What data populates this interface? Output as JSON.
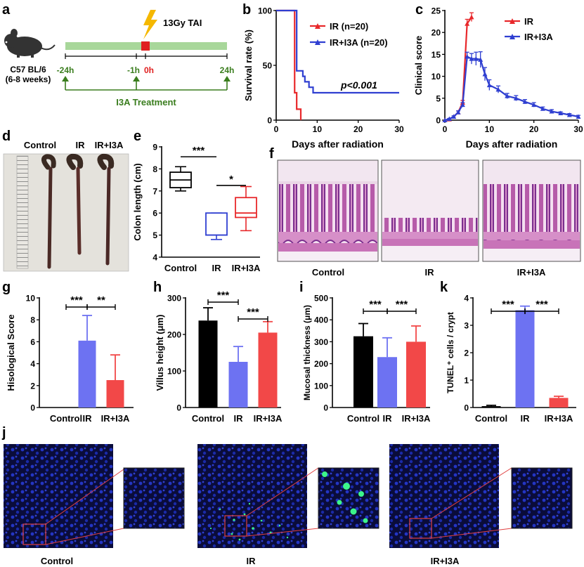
{
  "colors": {
    "red": "#e8282b",
    "blue": "#2f3fd1",
    "green_bar": "#a8d79a",
    "green_text": "#3a7d1e",
    "bar_black": "#000000",
    "bar_blue": "#6d72f2",
    "bar_red": "#f24848",
    "tissue_pink": "#c873b8",
    "tissue_purple": "#7b2f8e",
    "fluor_bg": "#0a0c3a",
    "fluor_cell": "#1a2ab0",
    "fluor_green": "#3cf58a",
    "zoom_line": "#e04040",
    "panel_border": "#555555"
  },
  "panel_letters": {
    "a": "a",
    "b": "b",
    "c": "c",
    "d": "d",
    "e": "e",
    "f": "f",
    "g": "g",
    "h": "h",
    "i": "i",
    "j": "j",
    "k": "k"
  },
  "panel_a": {
    "mouse_line1": "C57 BL/6",
    "mouse_line2": "(6-8 weeks)",
    "dose_label": "13Gy TAI",
    "times": [
      "-24h",
      "-1h",
      "0h",
      "24h"
    ],
    "treatment_label": "I3A Treatment"
  },
  "panel_d": {
    "labels": [
      "Control",
      "IR",
      "IR+I3A"
    ]
  },
  "panel_f": {
    "labels": [
      "Control",
      "IR",
      "IR+I3A"
    ]
  },
  "panel_j": {
    "labels": [
      "Control",
      "IR",
      "IR+I3A"
    ]
  },
  "chart_data": [
    {
      "panel": "b",
      "type": "line",
      "title": "",
      "xlabel": "Days after radiation",
      "ylabel": "Survival rate (%)",
      "xlim": [
        0,
        30
      ],
      "ylim": [
        0,
        100
      ],
      "xticks": [
        0,
        10,
        20,
        30
      ],
      "yticks": [
        0,
        50,
        100
      ],
      "series": [
        {
          "name": "IR (n=20)",
          "color": "red",
          "x": [
            0,
            4.5,
            4.5,
            5,
            5,
            5.5,
            5.5,
            6,
            6
          ],
          "y": [
            100,
            100,
            25,
            25,
            10,
            10,
            10,
            10,
            0
          ]
        },
        {
          "name": "IR+I3A (n=20)",
          "color": "blue",
          "x": [
            0,
            5,
            5,
            5.5,
            5.5,
            6.5,
            6.5,
            7,
            7,
            7.5,
            7.5,
            8,
            8,
            9,
            9,
            30
          ],
          "y": [
            100,
            100,
            45,
            45,
            45,
            45,
            40,
            40,
            35,
            35,
            35,
            35,
            30,
            30,
            25,
            25
          ]
        }
      ],
      "annotation": "p<0.001"
    },
    {
      "panel": "c",
      "type": "line",
      "title": "",
      "xlabel": "Days after radiation",
      "ylabel": "Clinical score",
      "xlim": [
        0,
        30
      ],
      "ylim": [
        0,
        25
      ],
      "xticks": [
        0,
        10,
        20,
        30
      ],
      "yticks": [
        0,
        5,
        10,
        15,
        20,
        25
      ],
      "series": [
        {
          "name": "IR",
          "color": "red",
          "x": [
            0,
            1,
            2,
            3,
            4,
            5,
            6
          ],
          "y": [
            0,
            0.2,
            0.8,
            1.8,
            4,
            22,
            23.5
          ],
          "err": [
            0,
            0,
            0,
            0.3,
            0.5,
            1,
            1
          ]
        },
        {
          "name": "IR+I3A",
          "color": "blue",
          "x": [
            0,
            1,
            2,
            3,
            4,
            5,
            6,
            7,
            8,
            9,
            10,
            12,
            14,
            16,
            18,
            20,
            22,
            24,
            26,
            28,
            30
          ],
          "y": [
            0,
            0.3,
            0.8,
            1.8,
            3.5,
            14.5,
            14,
            14,
            13.8,
            10.5,
            8,
            7,
            5.5,
            5,
            4.2,
            3.5,
            2.6,
            2,
            1.6,
            1.2,
            0.8
          ],
          "err": [
            0,
            0.1,
            0.2,
            0.3,
            0.5,
            1,
            1.2,
            1.5,
            1.8,
            1.5,
            1.2,
            0.8,
            0.6,
            0.6,
            0.5,
            0.5,
            0.4,
            0.4,
            0.3,
            0.3,
            0.3
          ]
        }
      ]
    },
    {
      "panel": "e",
      "type": "box",
      "title": "",
      "xlabel": "",
      "ylabel": "Colon length (cm)",
      "ylim": [
        4,
        9
      ],
      "yticks": [
        4,
        5,
        6,
        7,
        8,
        9
      ],
      "categories": [
        "Control",
        "IR",
        "IR+I3A"
      ],
      "boxes": [
        {
          "color": "black",
          "min": 7.0,
          "q1": 7.15,
          "median": 7.5,
          "q3": 7.85,
          "max": 8.1
        },
        {
          "color": "blue",
          "min": 4.8,
          "q1": 5.0,
          "median": 5.0,
          "q3": 6.0,
          "max": 6.0
        },
        {
          "color": "red",
          "min": 5.2,
          "q1": 5.8,
          "median": 6.0,
          "q3": 6.7,
          "max": 7.2
        }
      ],
      "significance": [
        {
          "from": 0,
          "to": 1,
          "label": "***"
        },
        {
          "from": 1,
          "to": 2,
          "label": "*"
        }
      ]
    },
    {
      "panel": "g",
      "type": "bar",
      "title": "",
      "xlabel": "",
      "ylabel": "Hisological Score",
      "ylim": [
        0,
        10
      ],
      "yticks": [
        0,
        2,
        4,
        6,
        8,
        10
      ],
      "categories": [
        "Control",
        "IR",
        "IR+I3A"
      ],
      "values": [
        0,
        6.1,
        2.5
      ],
      "errors": [
        0,
        2.3,
        2.3
      ],
      "colors": [
        "black",
        "blue",
        "red"
      ],
      "significance": [
        {
          "from": 0,
          "to": 1,
          "label": "***"
        },
        {
          "from": 1,
          "to": 2,
          "label": "**"
        }
      ]
    },
    {
      "panel": "h",
      "type": "bar",
      "title": "",
      "xlabel": "",
      "ylabel": "Villus height (μm)",
      "ylim": [
        0,
        300
      ],
      "yticks": [
        0,
        100,
        200,
        300
      ],
      "categories": [
        "Control",
        "IR",
        "IR+I3A"
      ],
      "values": [
        238,
        125,
        205
      ],
      "errors": [
        35,
        42,
        30
      ],
      "colors": [
        "black",
        "blue",
        "red"
      ],
      "significance": [
        {
          "from": 0,
          "to": 1,
          "label": "***"
        },
        {
          "from": 1,
          "to": 2,
          "label": "***"
        }
      ]
    },
    {
      "panel": "i",
      "type": "bar",
      "title": "",
      "xlabel": "",
      "ylabel": "Mucosal thickness (μm)",
      "ylim": [
        0,
        500
      ],
      "yticks": [
        0,
        100,
        200,
        300,
        400,
        500
      ],
      "categories": [
        "Control",
        "IR",
        "IR+I3A"
      ],
      "values": [
        325,
        230,
        300
      ],
      "errors": [
        58,
        88,
        72
      ],
      "colors": [
        "black",
        "blue",
        "red"
      ],
      "significance": [
        {
          "from": 0,
          "to": 1,
          "label": "***"
        },
        {
          "from": 1,
          "to": 2,
          "label": "***"
        }
      ]
    },
    {
      "panel": "k",
      "type": "bar",
      "title": "",
      "xlabel": "",
      "ylabel": "TUNEL⁺ cells / crypt",
      "ylim": [
        0,
        4
      ],
      "yticks": [
        0,
        1,
        2,
        3,
        4
      ],
      "categories": [
        "Control",
        "IR",
        "IR+I3A"
      ],
      "values": [
        0.05,
        3.55,
        0.35
      ],
      "errors": [
        0.03,
        0.15,
        0.06
      ],
      "colors": [
        "black",
        "blue",
        "red"
      ],
      "significance": [
        {
          "from": 0,
          "to": 1,
          "label": "***"
        },
        {
          "from": 1,
          "to": 2,
          "label": "***"
        }
      ]
    }
  ]
}
